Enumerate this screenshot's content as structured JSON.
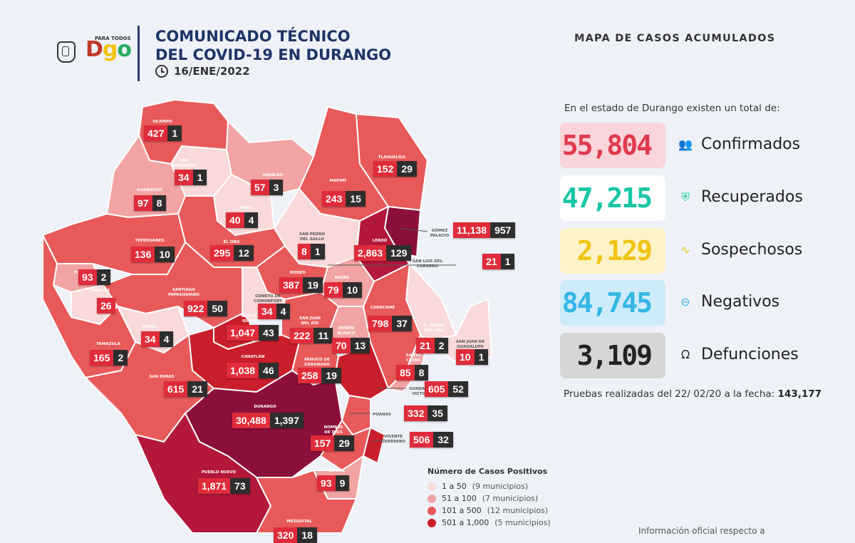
{
  "header": {
    "logo_tag": "PARA TODOS",
    "logo_text": "Dgo",
    "title_line1": "COMUNICADO TÉCNICO",
    "title_line2": "DEL COVID-19 EN DURANGO",
    "date": "16/ENE/2022"
  },
  "map_title": "MAPA DE CASOS ACUMULADOS",
  "intro": "En el estado de Durango existen un total de:",
  "stats": [
    {
      "value": "55,804",
      "label": "Confirmados",
      "icon": "people-icon",
      "color": "#e03a4e",
      "bg": "#f9d4da"
    },
    {
      "value": "47,215",
      "label": "Recuperados",
      "icon": "shield-icon",
      "color": "#18c6a4",
      "bg": "#ffffff"
    },
    {
      "value": "2,129",
      "label": "Sospechosos",
      "icon": "pulse-icon",
      "color": "#f2c412",
      "bg": "#fdf3c8"
    },
    {
      "value": "84,745",
      "label": "Negativos",
      "icon": "minus-circle-icon",
      "color": "#33b6e6",
      "bg": "#cdebf8"
    },
    {
      "value": "3,109",
      "label": "Defunciones",
      "icon": "ribbon-icon",
      "color": "#222222",
      "bg": "#d6d6d6"
    }
  ],
  "tests_text": "Pruebas realizadas del 22/ 02/20 a la fecha:",
  "tests_value": "143,177",
  "legend": {
    "title": "Número de Casos Positivos",
    "items": [
      {
        "range": "1 a 50",
        "count": "(9 municipios)",
        "color": "#f9d9d9"
      },
      {
        "range": "51 a 100",
        "count": "(7 municipios)",
        "color": "#f2a3a3"
      },
      {
        "range": "101 a 500",
        "count": "(12 municipios)",
        "color": "#e85a5a"
      },
      {
        "range": "501 a 1,000",
        "count": "(5 municipios)",
        "color": "#c91e2b"
      }
    ]
  },
  "footnote": "Información oficial respecto a",
  "municipalities": [
    {
      "name": "OCAMPO",
      "cases": "427",
      "deaths": "1"
    },
    {
      "name": "SAN BERNARDO",
      "cases": "34",
      "deaths": "1"
    },
    {
      "name": "GUANACEVÍ",
      "cases": "97",
      "deaths": "8"
    },
    {
      "name": "INDÉ",
      "cases": "40",
      "deaths": "4"
    },
    {
      "name": "HIDALGO",
      "cases": "57",
      "deaths": "3"
    },
    {
      "name": "MAPIMÍ",
      "cases": "243",
      "deaths": "15"
    },
    {
      "name": "TLAHUALILO",
      "cases": "152",
      "deaths": "29"
    },
    {
      "name": "GÓMEZ PALACIO",
      "cases": "11,138",
      "deaths": "957"
    },
    {
      "name": "LERDO",
      "cases": "2,863",
      "deaths": "129"
    },
    {
      "name": "SAN LUIS DEL CORDERO",
      "cases": "21",
      "deaths": "1"
    },
    {
      "name": "SAN PEDRO DEL GALLO",
      "cases": "8",
      "deaths": "1"
    },
    {
      "name": "EL ORO",
      "cases": "295",
      "deaths": "12"
    },
    {
      "name": "TEPEHUANES",
      "cases": "136",
      "deaths": "10"
    },
    {
      "name": "TOPIA",
      "cases": "93",
      "deaths": "2"
    },
    {
      "name": "CANELAS",
      "cases": "26",
      "deaths": ""
    },
    {
      "name": "SANTIAGO PAPASQUIARO",
      "cases": "922",
      "deaths": "50"
    },
    {
      "name": "RODEO",
      "cases": "387",
      "deaths": "19"
    },
    {
      "name": "NAZAS",
      "cases": "79",
      "deaths": "10"
    },
    {
      "name": "CONETO DE COMONFORT",
      "cases": "34",
      "deaths": "4"
    },
    {
      "name": "NUEVO IDEAL",
      "cases": "1,047",
      "deaths": "43"
    },
    {
      "name": "SAN JUAN DEL RÍO",
      "cases": "222",
      "deaths": "11"
    },
    {
      "name": "PEÑÓN BLANCO",
      "cases": "70",
      "deaths": "13"
    },
    {
      "name": "CUENCAMÉ",
      "cases": "798",
      "deaths": "37"
    },
    {
      "name": "G. SIMÓN BOLÍVAR",
      "cases": "21",
      "deaths": "2"
    },
    {
      "name": "SAN JUAN DE GUADALUPE",
      "cases": "10",
      "deaths": "1"
    },
    {
      "name": "OTÁEZ",
      "cases": "34",
      "deaths": "4"
    },
    {
      "name": "TAMAZULA",
      "cases": "165",
      "deaths": "2"
    },
    {
      "name": "CANATLÁN",
      "cases": "1,038",
      "deaths": "46"
    },
    {
      "name": "PÁNUCO DE CORONADO",
      "cases": "258",
      "deaths": "19"
    },
    {
      "name": "SANTA CLARA",
      "cases": "85",
      "deaths": "8"
    },
    {
      "name": "GUADALUPE VICTORIA",
      "cases": "605",
      "deaths": "52"
    },
    {
      "name": "SAN DIMAS",
      "cases": "615",
      "deaths": "21"
    },
    {
      "name": "DURANGO",
      "cases": "30,488",
      "deaths": "1,397"
    },
    {
      "name": "POANAS",
      "cases": "332",
      "deaths": "35"
    },
    {
      "name": "NOMBRE DE DIOS",
      "cases": "157",
      "deaths": "29"
    },
    {
      "name": "VICENTE GUERRERO",
      "cases": "506",
      "deaths": "32"
    },
    {
      "name": "PUEBLO NUEVO",
      "cases": "1,871",
      "deaths": "73"
    },
    {
      "name": "SÚCHIL",
      "cases": "93",
      "deaths": "9"
    },
    {
      "name": "MEZQUITAL",
      "cases": "320",
      "deaths": "18"
    }
  ]
}
